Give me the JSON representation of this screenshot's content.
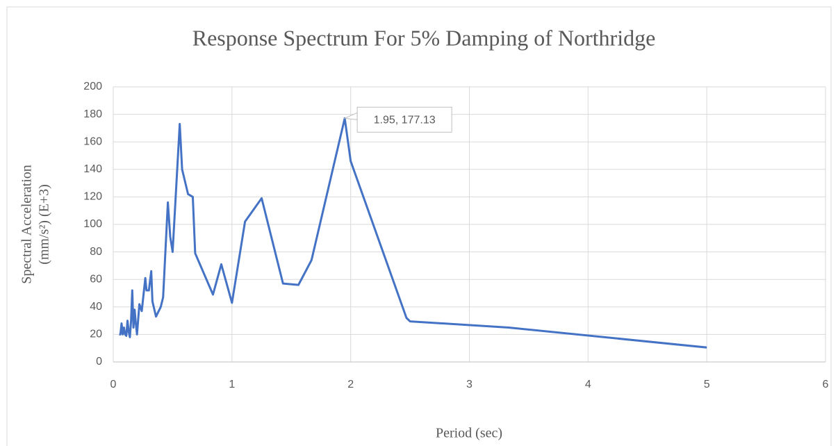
{
  "chart_data": {
    "type": "line",
    "title": "Response Spectrum For 5% Damping of Northridge",
    "xlabel": "Period (sec)",
    "ylabel": [
      "Spectral Acceleration",
      "(mm/s²) (E+3)"
    ],
    "x": [
      0.05,
      0.06,
      0.07,
      0.08,
      0.09,
      0.1,
      0.11,
      0.12,
      0.13,
      0.14,
      0.15,
      0.16,
      0.17,
      0.18,
      0.19,
      0.2,
      0.22,
      0.24,
      0.27,
      0.28,
      0.3,
      0.32,
      0.33,
      0.36,
      0.4,
      0.42,
      0.46,
      0.48,
      0.5,
      0.56,
      0.58,
      0.63,
      0.67,
      0.69,
      0.77,
      0.84,
      0.91,
      1.0,
      1.11,
      1.25,
      1.43,
      1.56,
      1.67,
      1.95,
      2.0,
      2.47,
      2.5,
      3.33,
      5.0
    ],
    "values": [
      20,
      20,
      28,
      20,
      25,
      20,
      19,
      30,
      22,
      18,
      30,
      52,
      25,
      38,
      28,
      20,
      42,
      37,
      61,
      52,
      52,
      66,
      44,
      33,
      40,
      47,
      116,
      91,
      80,
      173,
      140,
      122,
      120,
      79,
      63,
      49,
      71,
      43,
      102,
      119,
      57,
      56,
      74,
      177.13,
      146,
      32,
      29.5,
      25,
      10.5
    ],
    "color": "#4472c4",
    "xlim": [
      0,
      6
    ],
    "xticks": [
      0,
      1,
      2,
      3,
      4,
      5,
      6
    ],
    "ylim": [
      0,
      200
    ],
    "yticks": [
      0,
      20,
      40,
      60,
      80,
      100,
      120,
      140,
      160,
      180,
      200
    ],
    "grid": true,
    "annotation": {
      "x": 1.95,
      "y": 177.13,
      "label": "1.95, 177.13"
    }
  }
}
